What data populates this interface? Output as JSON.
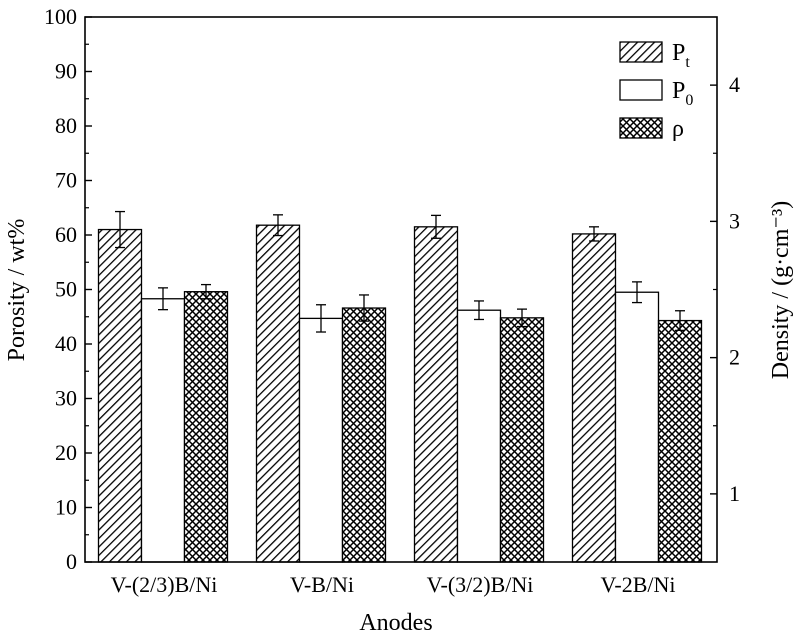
{
  "chart_data": {
    "type": "bar",
    "xlabel": "Anodes",
    "ylabel_left": "Porosity / wt%",
    "ylabel_right": "Density / (g·cm⁻³)",
    "categories": [
      "V-(2/3)B/Ni",
      "V-B/Ni",
      "V-(3/2)B/Ni",
      "V-2B/Ni"
    ],
    "y_left": {
      "min": 0,
      "max": 100,
      "ticks": [
        "0",
        "10",
        "20",
        "30",
        "40",
        "50",
        "60",
        "70",
        "80",
        "90",
        "100"
      ]
    },
    "y_right": {
      "min": 0.5,
      "max": 4.5,
      "ticks": [
        "1",
        "2",
        "3",
        "4"
      ]
    },
    "legend": {
      "position": "top-right"
    },
    "series": [
      {
        "name": "P",
        "subscript": "t",
        "axis": "left",
        "pattern": "hatch",
        "values": [
          61.0,
          61.8,
          61.5,
          60.2
        ],
        "errors": [
          3.3,
          1.9,
          2.1,
          1.3
        ]
      },
      {
        "name": "P",
        "subscript": "0",
        "axis": "left",
        "pattern": "white",
        "values": [
          48.3,
          44.7,
          46.2,
          49.5
        ],
        "errors": [
          2.0,
          2.5,
          1.7,
          1.9
        ]
      },
      {
        "name": "ρ",
        "subscript": "",
        "axis": "left",
        "pattern": "crosshatch",
        "values": [
          49.6,
          46.6,
          44.8,
          44.3
        ],
        "errors": [
          1.3,
          2.4,
          1.6,
          1.8
        ]
      }
    ]
  }
}
